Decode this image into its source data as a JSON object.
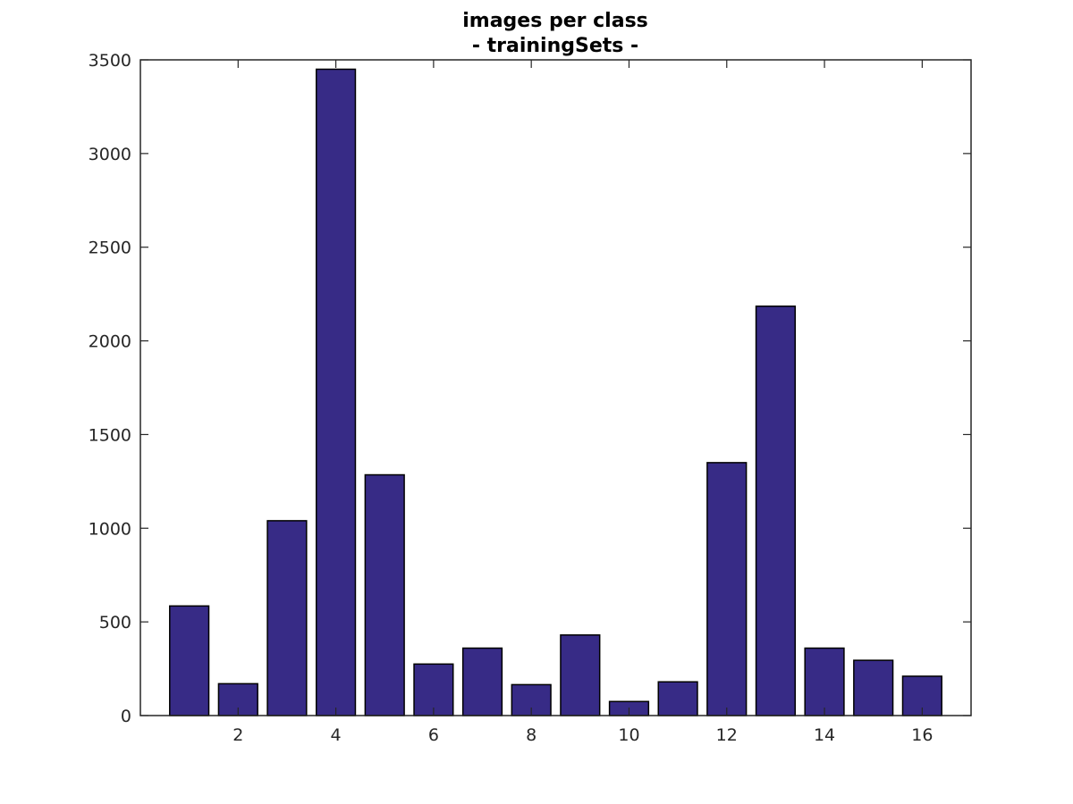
{
  "chart_data": {
    "type": "bar",
    "title": "images per class",
    "subtitle": "- trainingSets -",
    "xlabel": "",
    "ylabel": "",
    "categories": [
      1,
      2,
      3,
      4,
      5,
      6,
      7,
      8,
      9,
      10,
      11,
      12,
      13,
      14,
      15,
      16
    ],
    "values": [
      585,
      170,
      1040,
      3450,
      1285,
      275,
      360,
      165,
      430,
      75,
      180,
      1350,
      2185,
      360,
      295,
      210
    ],
    "xlim": [
      0,
      17
    ],
    "ylim": [
      0,
      3500
    ],
    "xticks": [
      2,
      4,
      6,
      8,
      10,
      12,
      14,
      16
    ],
    "yticks": [
      0,
      500,
      1000,
      1500,
      2000,
      2500,
      3000,
      3500
    ],
    "bar_color": "#372b86",
    "grid": false
  }
}
